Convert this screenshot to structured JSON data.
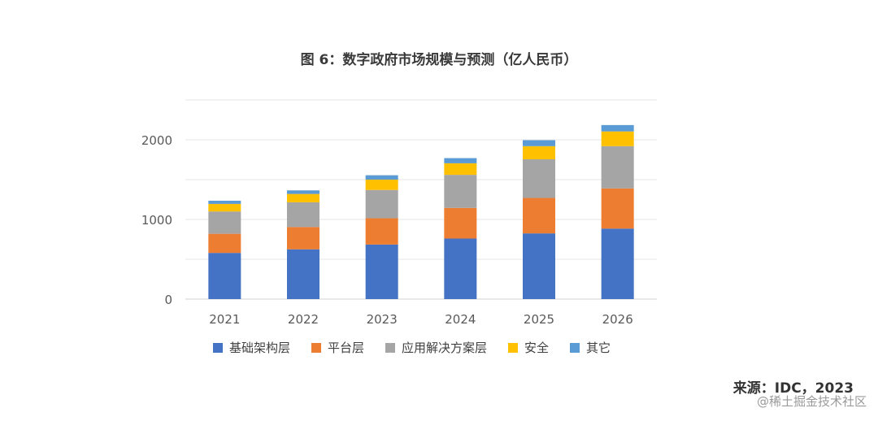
{
  "chart_data": {
    "type": "bar",
    "stacked": true,
    "title": "图 6：数字政府市场规模与预测（亿人民币）",
    "categories": [
      "2021",
      "2022",
      "2023",
      "2024",
      "2025",
      "2026"
    ],
    "series": [
      {
        "name": "基础架构层",
        "color": "#4472C4",
        "values": [
          580,
          625,
          685,
          760,
          825,
          885
        ]
      },
      {
        "name": "平台层",
        "color": "#ED7D31",
        "values": [
          240,
          280,
          330,
          385,
          445,
          505
        ]
      },
      {
        "name": "应用解决方案层",
        "color": "#A5A5A5",
        "values": [
          280,
          310,
          355,
          415,
          485,
          530
        ]
      },
      {
        "name": "安全",
        "color": "#FFC000",
        "values": [
          95,
          105,
          130,
          145,
          165,
          185
        ]
      },
      {
        "name": "其它",
        "color": "#5B9BD5",
        "values": [
          40,
          45,
          55,
          65,
          75,
          80
        ]
      }
    ],
    "ylim": [
      0,
      2500
    ],
    "yticks": [
      0,
      1000,
      2000
    ],
    "grid": true,
    "legend": "bottom",
    "xlabel": "",
    "ylabel": ""
  },
  "source": "来源：IDC，2023",
  "watermark": "@稀土掘金技术社区"
}
